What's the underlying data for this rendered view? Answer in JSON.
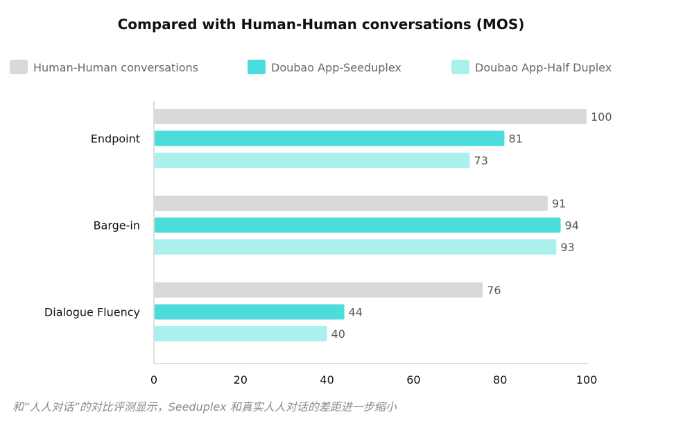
{
  "chart_data": {
    "type": "bar",
    "orientation": "horizontal",
    "title": "Compared with Human-Human conversations (MOS)",
    "categories": [
      "Endpoint",
      "Barge-in",
      "Dialogue Fluency"
    ],
    "series": [
      {
        "name": "Human-Human conversations",
        "values": [
          100,
          91,
          76
        ],
        "color": "#d9d9d9"
      },
      {
        "name": "Doubao App-Seeduplex",
        "values": [
          81,
          94,
          44
        ],
        "color": "#4ddcdc"
      },
      {
        "name": "Doubao App-Half Duplex",
        "values": [
          73,
          93,
          40
        ],
        "color": "#aaf0ec"
      }
    ],
    "xlim": [
      0,
      100
    ],
    "xticks": [
      0,
      20,
      40,
      60,
      80,
      100
    ],
    "grid": false,
    "legend_position": "top"
  },
  "caption": "和“人人对话”的对比评测显示，Seeduplex 和真实人人对话的差距进一步缩小"
}
